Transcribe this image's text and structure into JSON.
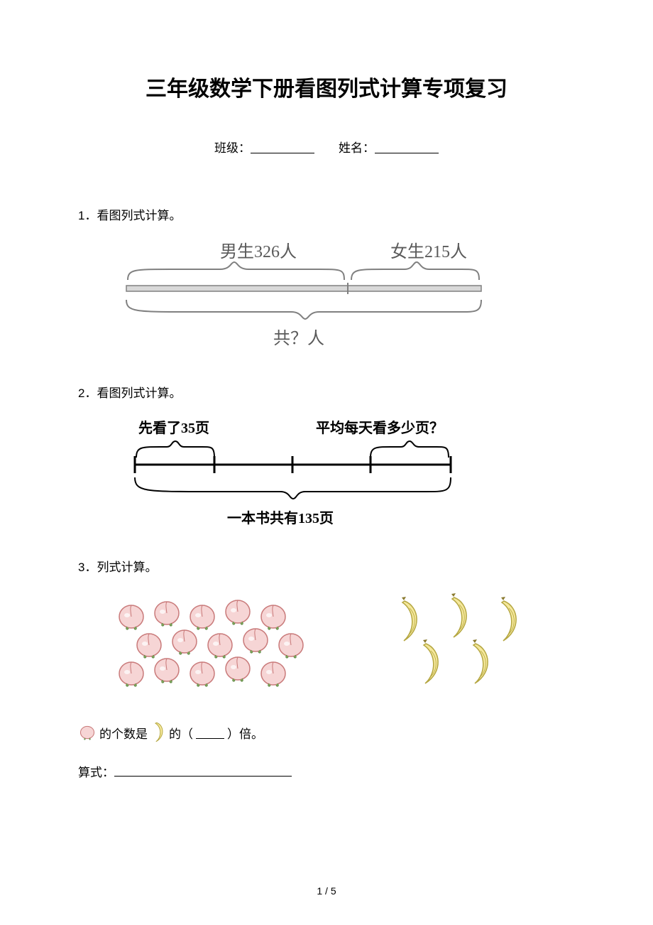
{
  "title": "三年级数学下册看图列式计算专项复习",
  "form": {
    "class_label": "班级：",
    "name_label": "姓名："
  },
  "q1": {
    "prompt_num": "1．",
    "prompt_text": "看图列式计算。",
    "boys_label": "男生326人",
    "girls_label": "女生215人",
    "total_label": "共？人",
    "line_color": "#808080",
    "brace_color": "#808080",
    "text_color": "#5a5a5a",
    "font_size": 24
  },
  "q2": {
    "prompt_num": "2．",
    "prompt_text": "看图列式计算。",
    "first_label": "先看了35页",
    "question_label": "平均每天看多少页？",
    "total_label": "一本书共有135页",
    "brace_color": "#000000",
    "text_color": "#000000",
    "font_size": 20
  },
  "q3": {
    "prompt_num": "3．",
    "prompt_text": "列式计算。",
    "peach_count": 15,
    "banana_count": 5,
    "peach_fill": "#f6d5d5",
    "peach_stroke": "#c97a7a",
    "peach_leaf": "#7fa95c",
    "banana_fill": "#f5e89b",
    "banana_stroke": "#b5a742",
    "sentence_pre": "的个数是",
    "sentence_mid": "的（",
    "sentence_post": "）倍。",
    "formula_label": "算式："
  },
  "footer": {
    "page": "1",
    "sep": " / ",
    "total": "5"
  }
}
